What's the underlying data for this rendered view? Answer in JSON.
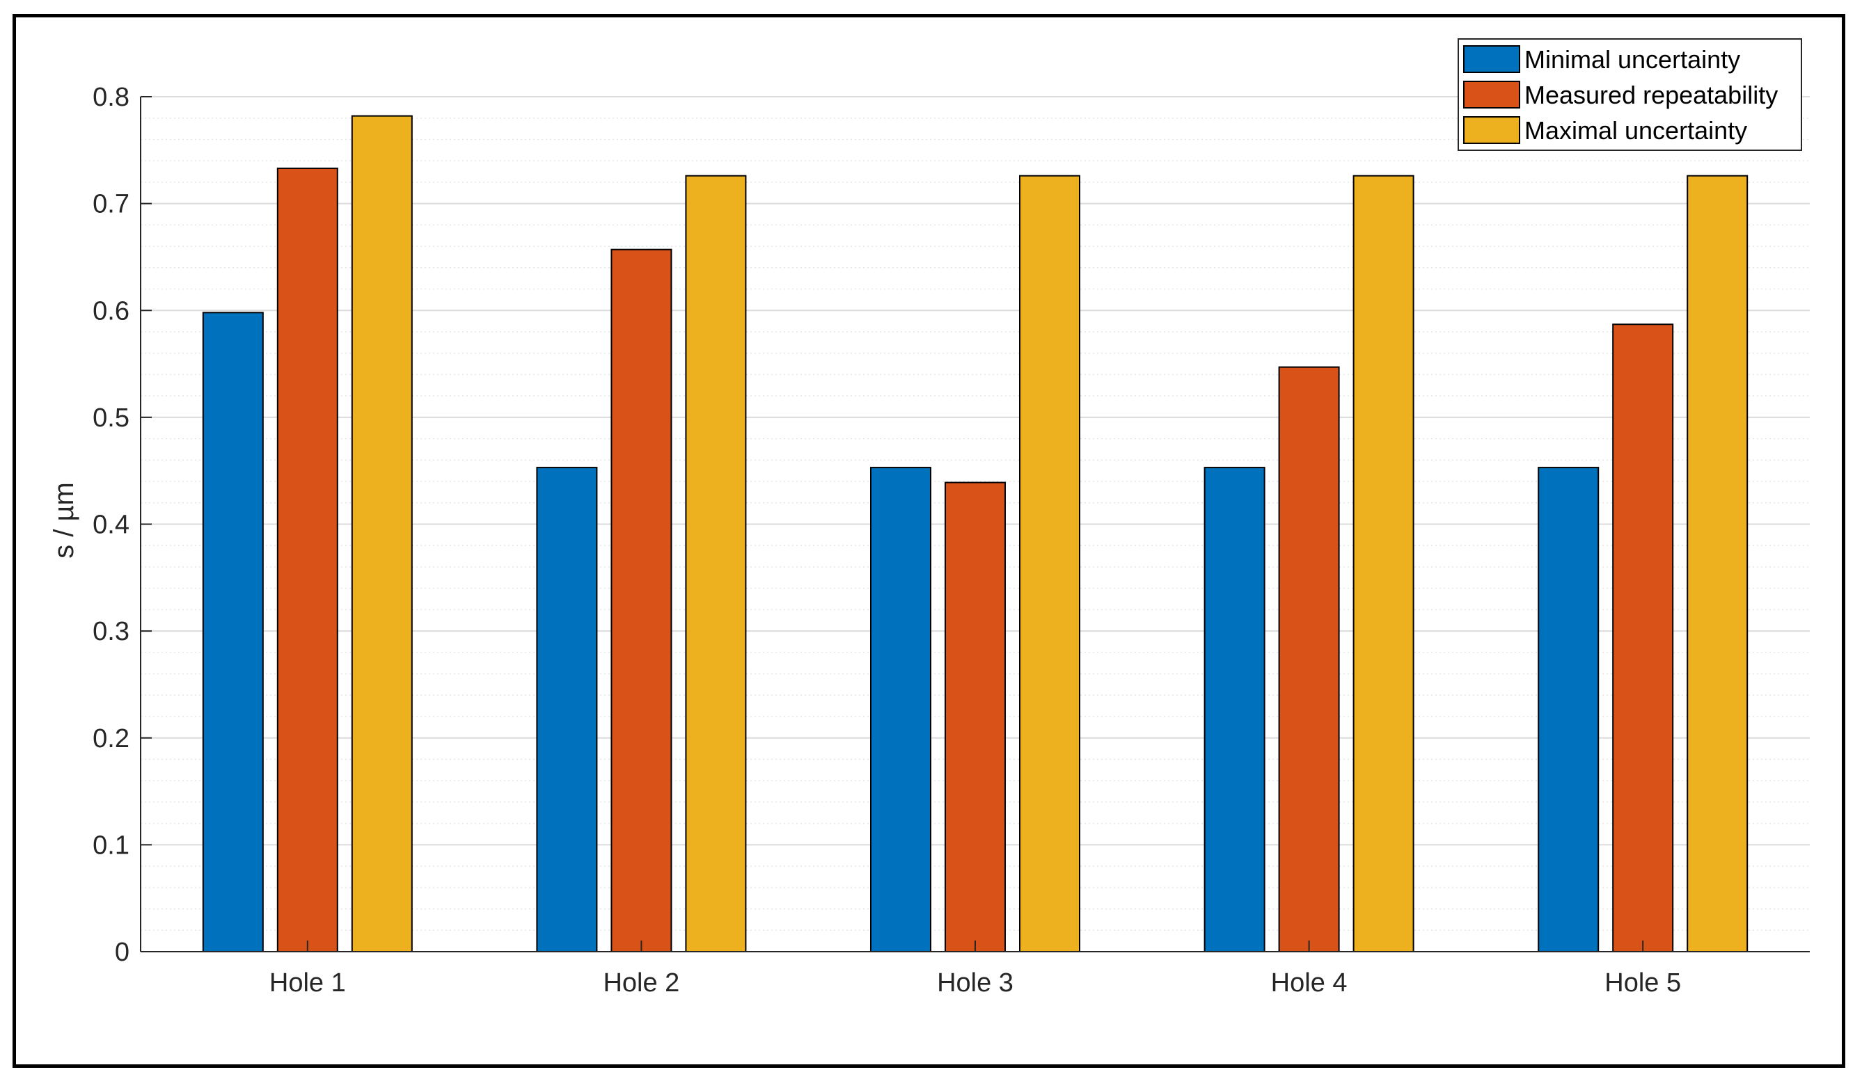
{
  "chart_data": {
    "type": "bar",
    "title": "",
    "xlabel": "",
    "ylabel": "s / µm",
    "categories": [
      "Hole 1",
      "Hole 2",
      "Hole 3",
      "Hole 4",
      "Hole 5"
    ],
    "series": [
      {
        "name": "Minimal uncertainty",
        "color": "#0072BD",
        "values": [
          0.598,
          0.453,
          0.453,
          0.453,
          0.453
        ]
      },
      {
        "name": "Measured repeatability",
        "color": "#D95319",
        "values": [
          0.733,
          0.657,
          0.439,
          0.547,
          0.587
        ]
      },
      {
        "name": "Maximal uncertainty",
        "color": "#EDB120",
        "values": [
          0.782,
          0.726,
          0.726,
          0.726,
          0.726
        ]
      }
    ],
    "ylim": [
      0,
      0.8
    ],
    "yticks": [
      "0",
      "0.1",
      "0.2",
      "0.3",
      "0.4",
      "0.5",
      "0.6",
      "0.7",
      "0.8"
    ],
    "grid": true,
    "minor_grid": true,
    "legend_position": "top-right"
  }
}
